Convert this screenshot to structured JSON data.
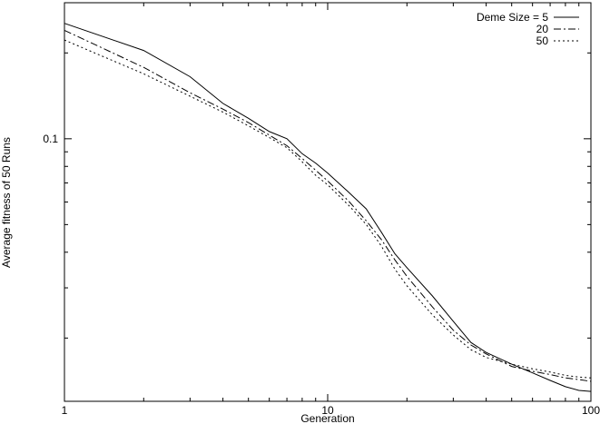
{
  "chart_data": {
    "type": "line",
    "title": "",
    "xlabel": "Generation",
    "ylabel": "Average fitness of 50 Runs",
    "x_scale": "log",
    "y_scale": "log",
    "xlim": [
      1,
      100
    ],
    "ylim": [
      0.012,
      0.3
    ],
    "grid": false,
    "legend_position": "top-right",
    "x_ticks": [
      {
        "value": 1,
        "label": "1"
      },
      {
        "value": 10,
        "label": "10"
      },
      {
        "value": 100,
        "label": "100"
      }
    ],
    "y_ticks": [
      {
        "value": 0.1,
        "label": "0.1"
      }
    ],
    "series": [
      {
        "name": "Deme Size = 5",
        "dash": "",
        "points": [
          [
            1,
            0.254
          ],
          [
            2,
            0.204
          ],
          [
            3,
            0.165
          ],
          [
            4,
            0.133
          ],
          [
            5,
            0.118
          ],
          [
            6,
            0.106
          ],
          [
            7,
            0.1
          ],
          [
            8,
            0.0886
          ],
          [
            9,
            0.0822
          ],
          [
            10,
            0.0758
          ],
          [
            12,
            0.065
          ],
          [
            14,
            0.0568
          ],
          [
            16,
            0.047
          ],
          [
            18,
            0.0395
          ],
          [
            20,
            0.0353
          ],
          [
            25,
            0.0281
          ],
          [
            30,
            0.0229
          ],
          [
            35,
            0.0193
          ],
          [
            40,
            0.0178
          ],
          [
            50,
            0.0162
          ],
          [
            60,
            0.0151
          ],
          [
            70,
            0.0142
          ],
          [
            80,
            0.0135
          ],
          [
            90,
            0.0131
          ],
          [
            100,
            0.013
          ]
        ]
      },
      {
        "name": "20",
        "dash": "8,3,2,3",
        "points": [
          [
            1,
            0.24
          ],
          [
            2,
            0.178
          ],
          [
            3,
            0.145
          ],
          [
            4,
            0.127
          ],
          [
            5,
            0.114
          ],
          [
            6,
            0.103
          ],
          [
            7,
            0.0945
          ],
          [
            8,
            0.0853
          ],
          [
            9,
            0.0776
          ],
          [
            10,
            0.0711
          ],
          [
            12,
            0.0605
          ],
          [
            14,
            0.0516
          ],
          [
            16,
            0.0443
          ],
          [
            18,
            0.0376
          ],
          [
            20,
            0.0329
          ],
          [
            25,
            0.0257
          ],
          [
            30,
            0.0213
          ],
          [
            35,
            0.0189
          ],
          [
            40,
            0.0176
          ],
          [
            50,
            0.0159
          ],
          [
            60,
            0.0153
          ],
          [
            70,
            0.0149
          ],
          [
            80,
            0.0145
          ],
          [
            90,
            0.0143
          ],
          [
            100,
            0.0141
          ]
        ]
      },
      {
        "name": "50",
        "dash": "2,3",
        "points": [
          [
            1,
            0.222
          ],
          [
            2,
            0.169
          ],
          [
            3,
            0.141
          ],
          [
            4,
            0.124
          ],
          [
            5,
            0.111
          ],
          [
            6,
            0.101
          ],
          [
            7,
            0.093
          ],
          [
            8,
            0.083
          ],
          [
            9,
            0.0745
          ],
          [
            10,
            0.0689
          ],
          [
            12,
            0.0585
          ],
          [
            14,
            0.0501
          ],
          [
            16,
            0.042
          ],
          [
            18,
            0.0349
          ],
          [
            20,
            0.0305
          ],
          [
            25,
            0.0241
          ],
          [
            30,
            0.0205
          ],
          [
            35,
            0.0182
          ],
          [
            40,
            0.0171
          ],
          [
            50,
            0.0162
          ],
          [
            60,
            0.0156
          ],
          [
            70,
            0.0152
          ],
          [
            80,
            0.0148
          ],
          [
            90,
            0.0146
          ],
          [
            100,
            0.0145
          ]
        ]
      }
    ]
  }
}
